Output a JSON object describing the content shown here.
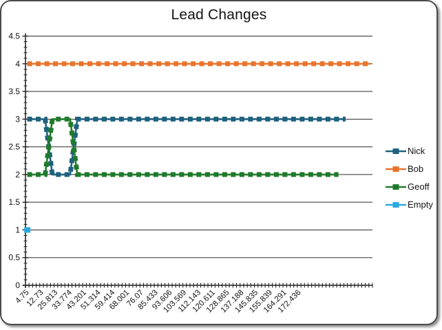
{
  "window": {
    "background_color": "#ffffff",
    "border_color": "#4a4a4a"
  },
  "chart_data": {
    "type": "line",
    "title": "Lead Changes",
    "xlabel": "",
    "ylabel": "",
    "ylim": [
      0,
      4.5
    ],
    "y_major_unit": 0.5,
    "y_minor_unit": 0.1,
    "y_tick_labels": [
      "0",
      "0.5",
      "1",
      "1.5",
      "2",
      "2.5",
      "3",
      "3.5",
      "4",
      "4.5"
    ],
    "x_tick_labels": [
      "4.75",
      "12.73",
      "25.813",
      "33.774",
      "43.201",
      "51.314",
      "59.414",
      "68.001",
      "76.07",
      "85.433",
      "93.606",
      "103.569",
      "112.143",
      "120.611",
      "128.865",
      "137.188",
      "145.835",
      "155.839",
      "164.291",
      "172.436"
    ],
    "x_label_interval": 4,
    "x_total_categories": 97,
    "grid": "horizontal-major",
    "legend_position": "right",
    "axis_color": "#1a1a1a",
    "gridline_color": "#2b2b2b",
    "text_color": "#121212",
    "series": [
      {
        "name": "Nick",
        "color": "#1E617F",
        "segments": [
          {
            "from": 0,
            "to": 5,
            "value": 3
          },
          {
            "from": 7,
            "to": 12,
            "value": 2
          },
          {
            "from": 14,
            "to": 89,
            "value": 3
          }
        ]
      },
      {
        "name": "Bob",
        "color": "#E8752E",
        "segments": [
          {
            "from": 0,
            "to": 96,
            "value": 4
          }
        ]
      },
      {
        "name": "Geoff",
        "color": "#207A2C",
        "segments": [
          {
            "from": 0,
            "to": 5,
            "value": 2
          },
          {
            "from": 7,
            "to": 12,
            "value": 3
          },
          {
            "from": 14,
            "to": 87,
            "value": 2
          }
        ]
      },
      {
        "name": "Empty",
        "color": "#2BA9DF",
        "segments": [
          {
            "from": 0,
            "to": 0,
            "value": 1
          }
        ]
      }
    ]
  }
}
